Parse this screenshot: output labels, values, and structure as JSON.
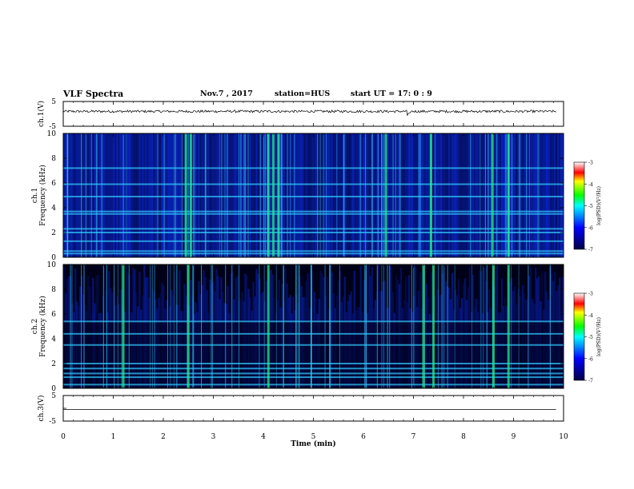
{
  "header": {
    "title": "VLF Spectra",
    "date": "Nov.7  , 2017",
    "station": "station=HUS",
    "start": "start  UT  =   17: 0  : 9"
  },
  "chart_data": [
    {
      "type": "line",
      "panel": "ch1-waveform",
      "ylabel": "ch.1(V)",
      "ylim": [
        -5,
        5
      ],
      "yticks": [
        "5",
        "-5"
      ],
      "xlim": [
        0,
        10
      ],
      "description_level": "waveform oscillating near +1 V with small noise"
    },
    {
      "type": "heatmap",
      "panel": "ch1-spectrogram",
      "ylabel_top": "ch.1",
      "ylabel": "Frequency  (kHz)",
      "ylim": [
        0,
        10
      ],
      "yticks": [
        "0",
        "2",
        "4",
        "6",
        "8",
        "10"
      ],
      "xlim": [
        0,
        10
      ],
      "colorbar": {
        "label": "log(PSD)(V²/Hz)",
        "range": [
          -7,
          -3
        ],
        "ticks": [
          "-3",
          "-4",
          "-5",
          "-6",
          "-7"
        ]
      },
      "bright_lines_khz": [
        0.3,
        0.5,
        1.3,
        2.0,
        2.3,
        3.5,
        3.7,
        4.9,
        5.9,
        7.2
      ],
      "strong_bursts_min": [
        2.45,
        2.55,
        4.1,
        4.2,
        4.3,
        6.45,
        7.35,
        8.58,
        8.9
      ]
    },
    {
      "type": "heatmap",
      "panel": "ch2-spectrogram",
      "ylabel_top": "ch.2",
      "ylabel": "Frequency  (kHz)",
      "ylim": [
        0,
        10
      ],
      "yticks": [
        "0",
        "2",
        "4",
        "6",
        "8",
        "10"
      ],
      "xlim": [
        0,
        10
      ],
      "colorbar": {
        "label": "log(PSD)(V²/Hz)",
        "range": [
          -7,
          -3
        ],
        "ticks": [
          "-3",
          "-4",
          "-5",
          "-6",
          "-7"
        ]
      },
      "bright_lines_khz": [
        0.3,
        0.9,
        1.2,
        1.6,
        2.0,
        3.5,
        4.4,
        5.4
      ],
      "strong_bursts_min": [
        1.2,
        2.5,
        4.1,
        7.2,
        7.4,
        8.6,
        8.9
      ]
    },
    {
      "type": "line",
      "panel": "ch3-waveform",
      "ylabel": "ch.3(V)",
      "ylim": [
        -5,
        5
      ],
      "yticks": [
        "5",
        "0",
        "-5"
      ],
      "xlim": [
        0,
        10
      ],
      "xlabel": "Time  (min)",
      "xticks": [
        "0",
        "1",
        "2",
        "3",
        "4",
        "5",
        "6",
        "7",
        "8",
        "9",
        "10"
      ],
      "description_level": "flat line near -0.5 V"
    }
  ],
  "colors": {
    "background_dark": "#000022",
    "noise_blue": "#0a28d8",
    "bright_cyan": "#33ccff",
    "burst_green": "#22ee88"
  }
}
